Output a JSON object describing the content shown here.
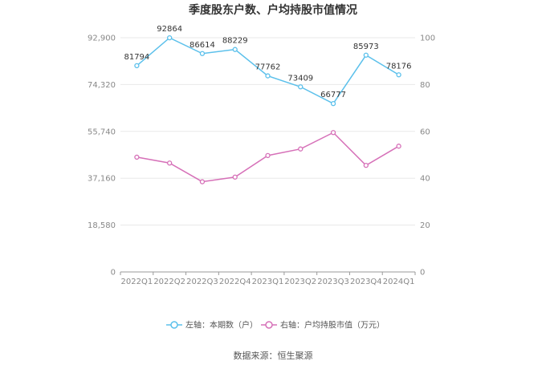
{
  "chart_data": {
    "type": "line",
    "title": "季度股东户数、户均持股市值情况",
    "categories": [
      "2022Q1",
      "2022Q2",
      "2022Q3",
      "2022Q4",
      "2023Q1",
      "2023Q2",
      "2023Q3",
      "2023Q4",
      "2024Q1"
    ],
    "left_axis": {
      "range": [
        0,
        92900
      ],
      "ticks": [
        0,
        18580,
        37160,
        55740,
        74320,
        92900
      ],
      "tick_labels": [
        "0",
        "18,580",
        "37,160",
        "55,740",
        "74,320",
        "92,900"
      ]
    },
    "right_axis": {
      "range": [
        0,
        100
      ],
      "ticks": [
        0,
        20,
        40,
        60,
        80,
        100
      ],
      "tick_labels": [
        "0",
        "20",
        "40",
        "60",
        "80",
        "100"
      ]
    },
    "series": [
      {
        "name": "左轴：本期数（户）",
        "axis": "left",
        "color": "#5bc0eb",
        "values": [
          81794,
          92864,
          86614,
          88229,
          77762,
          73409,
          66777,
          85973,
          78176
        ],
        "labels": [
          "81794",
          "92864",
          "86614",
          "88229",
          "77762",
          "73409",
          "66777",
          "85973",
          "78176"
        ]
      },
      {
        "name": "右轴：户均持股市值（万元）",
        "axis": "right",
        "color": "#d670b8",
        "values": [
          49,
          46.5,
          38.5,
          40.5,
          49.7,
          52.5,
          59.5,
          45.5,
          53.7
        ]
      }
    ],
    "grid": true,
    "legend_position": "bottom"
  },
  "source_text": "数据来源：恒生聚源"
}
